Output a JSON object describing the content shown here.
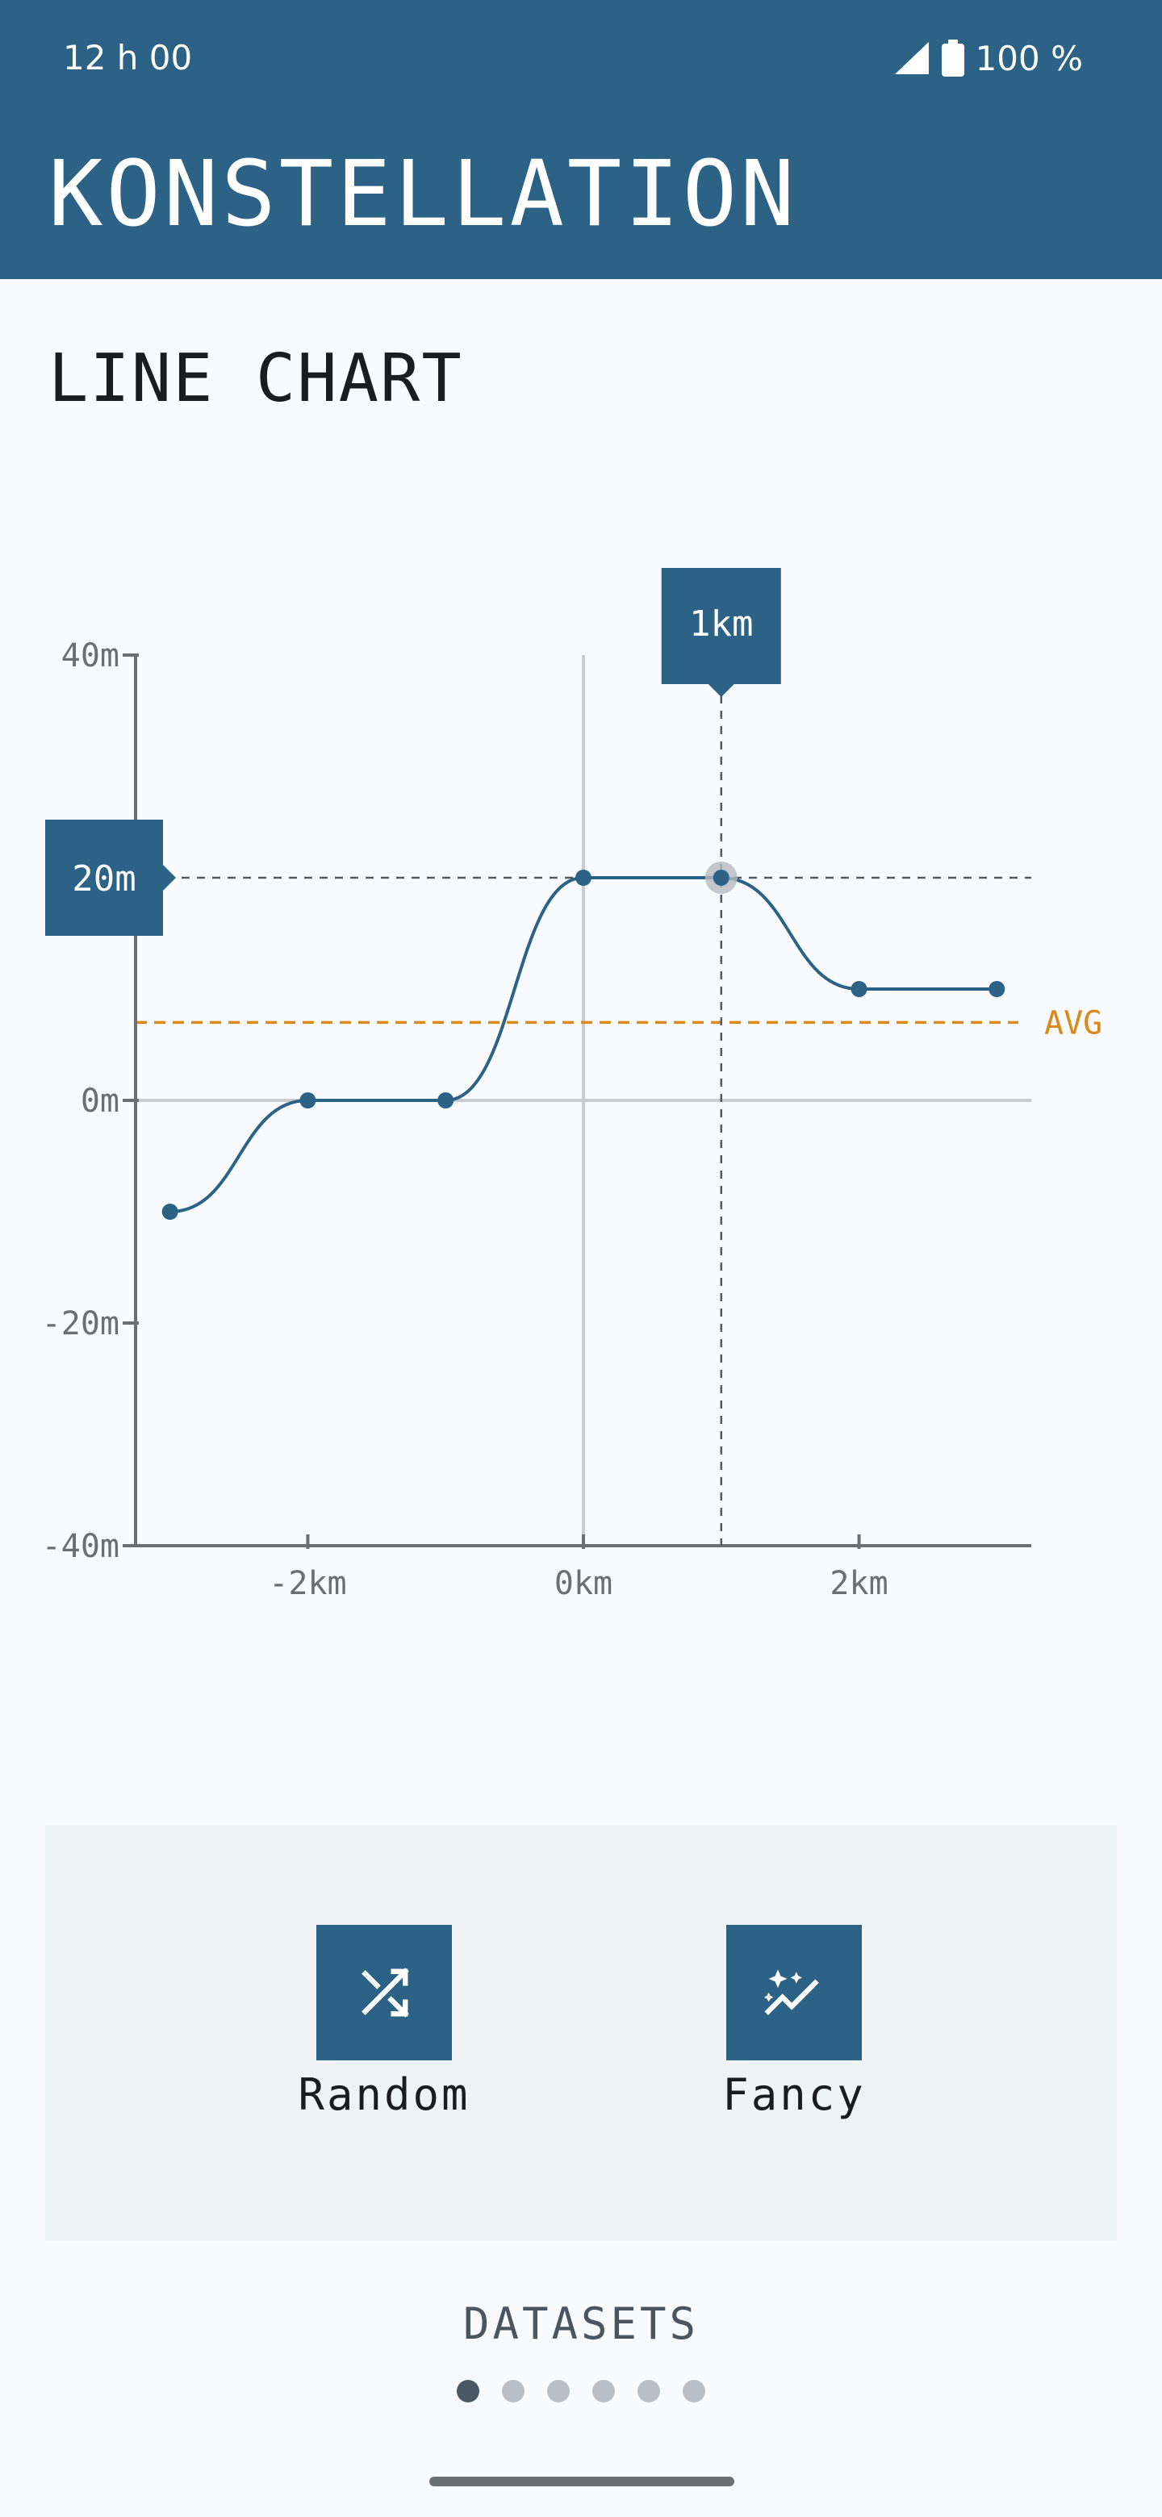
{
  "status": {
    "time": "12 h 00",
    "battery": "100 %"
  },
  "app": {
    "title": "KONSTELLATION"
  },
  "page": {
    "title": "LINE CHART"
  },
  "chart_data": {
    "type": "line",
    "x": [
      -3,
      -2,
      -1,
      0,
      1,
      2,
      3
    ],
    "values": [
      -10,
      0,
      0,
      20,
      20,
      10,
      10
    ],
    "xlim": [
      -3.25,
      3.25
    ],
    "ylim": [
      -40,
      40
    ],
    "x_ticks": [
      -2,
      0,
      2
    ],
    "y_ticks": [
      -40,
      -20,
      0,
      20,
      40
    ],
    "x_tick_labels": [
      "-2km",
      "0km",
      "2km"
    ],
    "y_tick_labels": [
      "-40m",
      "-20m",
      "0m",
      "20m",
      "40m"
    ],
    "average": 7,
    "average_label": "AVG",
    "selected": {
      "x": 1,
      "y": 20,
      "x_label": "1km",
      "y_label": "20m"
    },
    "colors": {
      "line": "#2b6286",
      "average": "#d98a1d",
      "axis": "#6b6e73",
      "grid": "#c9cbce"
    }
  },
  "actions": [
    {
      "label": "Random",
      "icon": "shuffle-icon"
    },
    {
      "label": "Fancy",
      "icon": "sparkle-chart-icon"
    }
  ],
  "datasets": {
    "label": "DATASETS",
    "count": 6,
    "active_index": 0
  }
}
